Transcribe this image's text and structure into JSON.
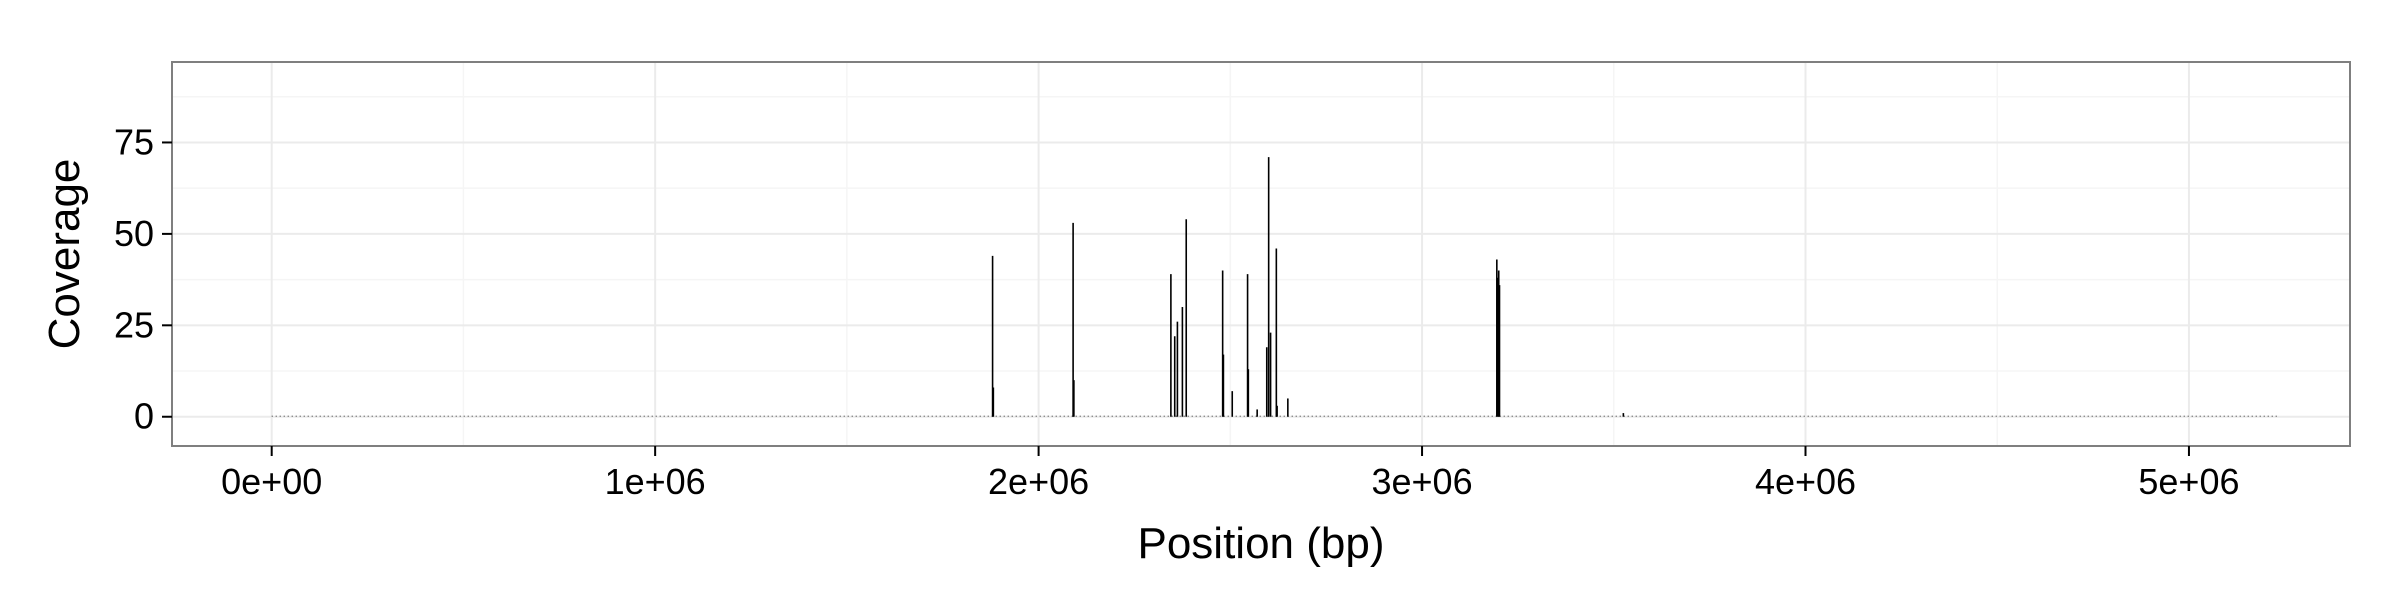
{
  "chart_data": {
    "type": "bar",
    "title": "",
    "xlabel": "Position (bp)",
    "ylabel": "Coverage",
    "xlim": [
      -260000,
      5420000
    ],
    "ylim": [
      -8,
      97
    ],
    "x_ticks": [
      0,
      1000000,
      2000000,
      3000000,
      4000000,
      5000000
    ],
    "x_tick_labels": [
      "0e+00",
      "1e+06",
      "2e+06",
      "3e+06",
      "4e+06",
      "5e+06"
    ],
    "y_ticks": [
      0,
      25,
      50,
      75
    ],
    "y_tick_labels": [
      "0",
      "25",
      "50",
      "75"
    ],
    "grid": true,
    "legend": "none",
    "background_color": "#ffffff",
    "grid_color": "#ebebeb",
    "border_color": "#7f7f7f",
    "bar_color": "#000000",
    "baseline_range": [
      0,
      5230000
    ],
    "x": [
      1880000,
      1882000,
      2090000,
      2092000,
      2345000,
      2355000,
      2362000,
      2375000,
      2385000,
      2480000,
      2482000,
      2505000,
      2545000,
      2547000,
      2570000,
      2595000,
      2600000,
      2605000,
      2620000,
      2622000,
      2650000,
      3195000,
      3198000,
      3200000,
      3202000,
      3525000
    ],
    "values": [
      44,
      8,
      53,
      10,
      39,
      22,
      26,
      30,
      54,
      40,
      17,
      7,
      39,
      13,
      2,
      19,
      71,
      23,
      46,
      3,
      5,
      43,
      38,
      40,
      36,
      1
    ]
  }
}
